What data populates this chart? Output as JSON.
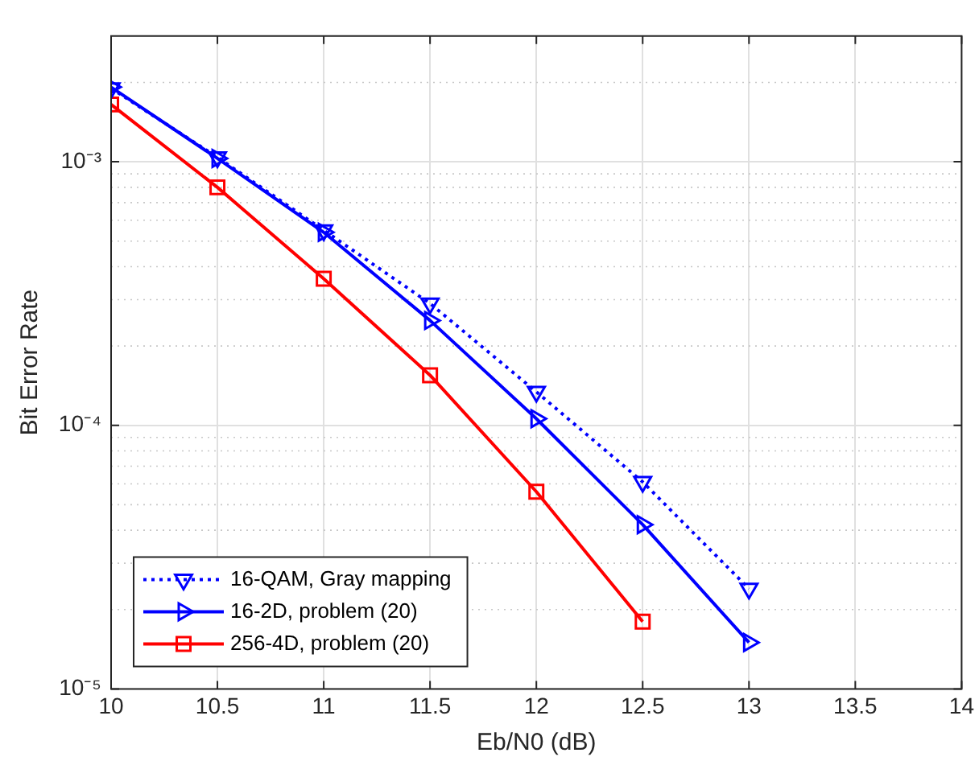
{
  "chart_data": {
    "type": "line",
    "xlabel": "Eb/N0 (dB)",
    "ylabel": "Bit Error Rate",
    "x": [
      10,
      10.5,
      11,
      11.5,
      12,
      12.5,
      13
    ],
    "series": [
      {
        "name": "16-QAM, Gray mapping",
        "color": "#0000ff",
        "line_style": "dotted",
        "marker": "triangle-down",
        "values": [
          0.0019,
          0.00104,
          0.00055,
          0.00029,
          0.000134,
          6.1e-05,
          2.4e-05
        ]
      },
      {
        "name": "16-2D, problem (20)",
        "color": "#0000ff",
        "line_style": "solid",
        "marker": "triangle-right",
        "values": [
          0.00192,
          0.00103,
          0.00054,
          0.00025,
          0.000106,
          4.2e-05,
          1.5e-05
        ]
      },
      {
        "name": "256-4D, problem (20)",
        "color": "#ff0000",
        "line_style": "solid",
        "marker": "square",
        "x": [
          10,
          10.5,
          11,
          11.5,
          12,
          12.5
        ],
        "values": [
          0.00165,
          0.0008,
          0.00036,
          0.000155,
          5.6e-05,
          1.8e-05
        ]
      }
    ],
    "log": "y",
    "xlim": [
      10,
      14
    ],
    "xticks": [
      10,
      10.5,
      11,
      11.5,
      12,
      12.5,
      13,
      13.5,
      14
    ],
    "ylim": [
      1e-05,
      0.003
    ],
    "yticks": [
      {
        "value": 1e-05,
        "label": "10⁻⁵"
      },
      {
        "value": 0.0001,
        "label": "10⁻⁴"
      },
      {
        "value": 0.001,
        "label": "10⁻³"
      }
    ],
    "grid": true,
    "legend": "bottom left"
  }
}
